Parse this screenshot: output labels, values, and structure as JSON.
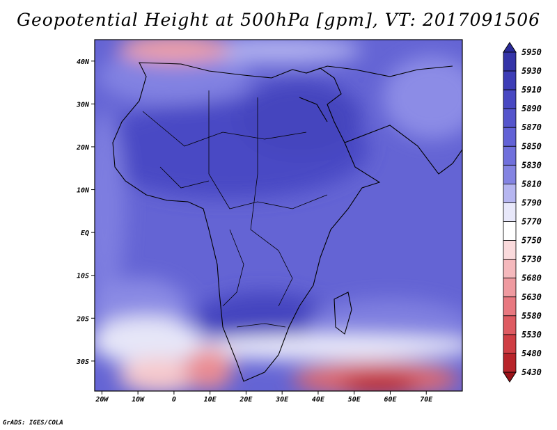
{
  "title": "Geopotential Height at 500hPa [gpm], VT: 2017091506",
  "credit": "GrADS: IGES/COLA",
  "map": {
    "lon_range": [
      -22,
      80
    ],
    "lat_range": [
      -37,
      45
    ],
    "x_ticks": [
      "20W",
      "10W",
      "0",
      "10E",
      "20E",
      "30E",
      "40E",
      "50E",
      "60E",
      "70E"
    ],
    "y_ticks": [
      "40N",
      "30N",
      "20N",
      "10N",
      "EQ",
      "10S",
      "20S",
      "30S"
    ]
  },
  "colorbar": {
    "labels": [
      "5950",
      "5930",
      "5910",
      "5890",
      "5870",
      "5850",
      "5830",
      "5810",
      "5790",
      "5770",
      "5750",
      "5730",
      "5680",
      "5630",
      "5580",
      "5530",
      "5480",
      "5430"
    ],
    "colors": [
      "#2a2a98",
      "#3434a8",
      "#3d3db6",
      "#4848c2",
      "#5555cc",
      "#6262d6",
      "#7070dc",
      "#8484e2",
      "#b6b6f0",
      "#e8e8fa",
      "#ffffff",
      "#fadadc",
      "#f5b9bd",
      "#ef9aa0",
      "#e87880",
      "#de5b62",
      "#cf3e44",
      "#b8242a",
      "#9a1218"
    ]
  }
}
